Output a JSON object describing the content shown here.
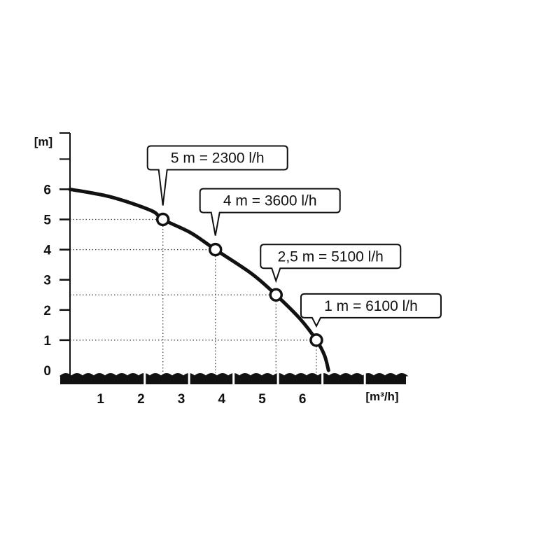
{
  "chart_data": {
    "type": "line",
    "title": "",
    "xlabel": "[m³/h]",
    "ylabel": "[m]",
    "xlim": [
      0,
      7.5
    ],
    "ylim": [
      0,
      8
    ],
    "x_ticks": [
      1,
      2,
      3,
      4,
      5,
      6
    ],
    "y_ticks": [
      0,
      1,
      2,
      3,
      4,
      5,
      6
    ],
    "grid": false,
    "series": [
      {
        "curve": [
          {
            "x": 0,
            "y": 6
          },
          {
            "x": 1,
            "y": 5.75
          },
          {
            "x": 2,
            "y": 5.3
          },
          {
            "x": 2.3,
            "y": 5
          },
          {
            "x": 3,
            "y": 4.55
          },
          {
            "x": 3.6,
            "y": 4
          },
          {
            "x": 4.5,
            "y": 3.2
          },
          {
            "x": 5.1,
            "y": 2.5
          },
          {
            "x": 5.7,
            "y": 1.7
          },
          {
            "x": 6.1,
            "y": 1
          },
          {
            "x": 6.3,
            "y": 0.5
          },
          {
            "x": 6.4,
            "y": 0
          }
        ],
        "marked_points": [
          {
            "x": 2.3,
            "y": 5,
            "label": "5 m = 2300 l/h"
          },
          {
            "x": 3.6,
            "y": 4,
            "label": "4 m = 3600 l/h"
          },
          {
            "x": 5.1,
            "y": 2.5,
            "label": "2,5 m = 5100 l/h"
          },
          {
            "x": 6.1,
            "y": 1,
            "label": "1 m = 6100 l/h"
          }
        ]
      }
    ],
    "colors": {
      "line": "#111111",
      "marker_fill": "#ffffff",
      "water": "#111111"
    }
  }
}
